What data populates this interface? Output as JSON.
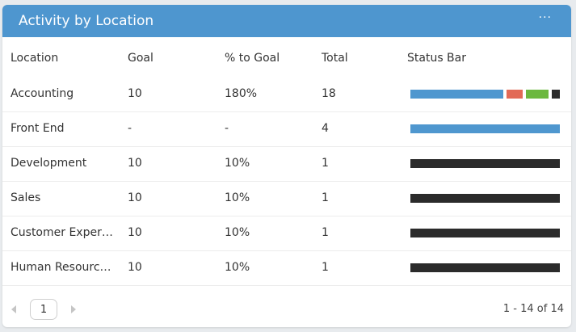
{
  "header": {
    "title": "Activity by Location"
  },
  "table": {
    "columns": [
      "Location",
      "Goal",
      "% to Goal",
      "Total",
      "Status Bar"
    ],
    "rows": [
      {
        "cells": [
          "Accounting",
          "10",
          "180%",
          "18"
        ],
        "status": [
          {
            "value": 12,
            "color": "#4f97cf"
          },
          {
            "value": 2,
            "color": "#e26a57"
          },
          {
            "value": 3,
            "color": "#6cb83f"
          },
          {
            "value": 1,
            "color": "#2b2b2b"
          }
        ]
      },
      {
        "cells": [
          "Front End",
          "-",
          "-",
          "4"
        ],
        "status": [
          {
            "value": 4,
            "color": "#4f97cf"
          }
        ]
      },
      {
        "cells": [
          "Development",
          "10",
          "10%",
          "1"
        ],
        "status": [
          {
            "value": 1,
            "color": "#2b2b2b"
          }
        ]
      },
      {
        "cells": [
          "Sales",
          "10",
          "10%",
          "1"
        ],
        "status": [
          {
            "value": 1,
            "color": "#2b2b2b"
          }
        ]
      },
      {
        "cells": [
          "Customer Exper…",
          "10",
          "10%",
          "1"
        ],
        "status": [
          {
            "value": 1,
            "color": "#2b2b2b"
          }
        ]
      },
      {
        "cells": [
          "Human Resourc…",
          "10",
          "10%",
          "1"
        ],
        "status": [
          {
            "value": 1,
            "color": "#2b2b2b"
          }
        ]
      }
    ]
  },
  "pager": {
    "page": "1",
    "range": "1 - 14 of 14"
  }
}
